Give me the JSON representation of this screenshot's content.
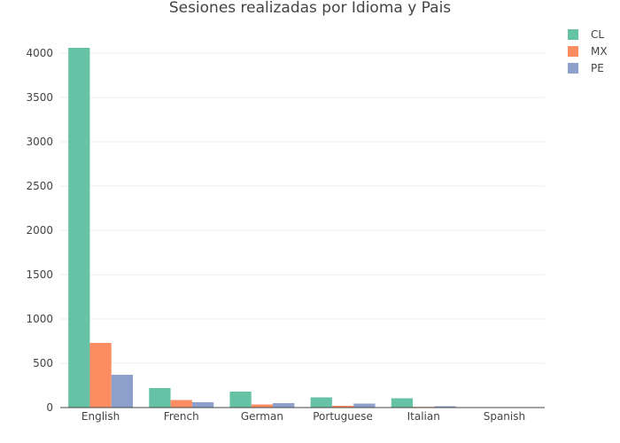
{
  "chart_data": {
    "type": "bar",
    "title": "Sesiones realizadas por Idioma y Pais",
    "xlabel": "",
    "ylabel": "",
    "categories": [
      "English",
      "French",
      "German",
      "Portuguese",
      "Italian",
      "Spanish"
    ],
    "series": [
      {
        "name": "CL",
        "color": "#66c2a5",
        "values": [
          4060,
          220,
          180,
          115,
          105,
          3
        ]
      },
      {
        "name": "MX",
        "color": "#fc8d62",
        "values": [
          730,
          85,
          35,
          20,
          8,
          2
        ]
      },
      {
        "name": "PE",
        "color": "#8da0cb",
        "values": [
          370,
          60,
          50,
          45,
          15,
          2
        ]
      }
    ],
    "ylim": [
      0,
      4200
    ],
    "yticks": [
      0,
      500,
      1000,
      1500,
      2000,
      2500,
      3000,
      3500,
      4000
    ],
    "grid": true,
    "legend_position": "top-right"
  }
}
